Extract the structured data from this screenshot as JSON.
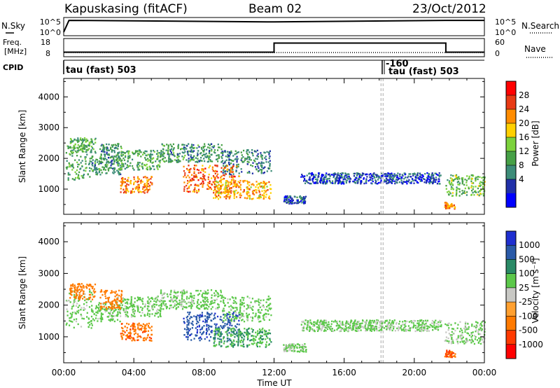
{
  "header": {
    "station": "Kapuskasing (fitACF)",
    "beam": "Beam 02",
    "date": "23/Oct/2012"
  },
  "panels": {
    "nsky_label": "N.Sky",
    "nsearch_label": "N.Search",
    "freq_label_1": "Freq.",
    "freq_label_2": "[MHz]",
    "nave_label": "Nave",
    "cpid_label": "CPID",
    "power_label": "Power [dB]",
    "velocity_label": "Velocity [m s⁻¹]",
    "ylabel": "Slant Range [km]",
    "xlabel": "Time UT"
  },
  "noise_ticks": {
    "left": [
      "10^5",
      "10^0"
    ],
    "right": [
      "10^5",
      "10^0"
    ]
  },
  "freq_ticks": {
    "left": [
      "18",
      "8"
    ],
    "right": [
      "60",
      "0"
    ]
  },
  "cpid": [
    {
      "label": "tau (fast) 503",
      "start_hour": 0
    },
    {
      "label": "-160",
      "start_hour": 18.1
    },
    {
      "label": "tau (fast) 503",
      "start_hour": 18.1
    }
  ],
  "power_scale": {
    "ticks": [
      "28",
      "24",
      "20",
      "16",
      "12",
      "8",
      "4"
    ],
    "colors": [
      "#ff0000",
      "#e83a14",
      "#ff8c00",
      "#ffd000",
      "#7cd23c",
      "#46a046",
      "#3c8c78",
      "#2030a8",
      "#0000ff"
    ]
  },
  "velocity_scale": {
    "ticks": [
      "1000",
      "500",
      "100",
      "25",
      "-25",
      "-100",
      "-500",
      "-1000"
    ],
    "colors": [
      "#1f2fd0",
      "#2a5aa8",
      "#2a8a66",
      "#5cc84a",
      "#c8c8c4",
      "#ffa030",
      "#ff7a00",
      "#ff3a00",
      "#ff0000"
    ]
  },
  "chart_data": {
    "type": "heatmap",
    "x_range_hours": [
      0,
      24
    ],
    "x_tick_labels": [
      "00:00",
      "04:00",
      "08:00",
      "12:00",
      "16:00",
      "20:00",
      "00:00"
    ],
    "y_range_km": [
      180,
      4600
    ],
    "y_tick_labels": [
      "1000",
      "2000",
      "3000",
      "4000"
    ],
    "nsky_log": {
      "hours": [
        0,
        0.3,
        12,
        21.8,
        24
      ],
      "values": [
        0.5,
        4.3,
        3.8,
        4.3,
        4.3
      ]
    },
    "freq_mhz": {
      "hours": [
        0,
        12,
        21.8,
        24
      ],
      "values": [
        8,
        15,
        8,
        8
      ]
    },
    "features": [
      {
        "t0": 0.1,
        "t1": 1.6,
        "r0": 1300,
        "r1": 2500,
        "power": 12,
        "vel": 20
      },
      {
        "t0": 1.6,
        "t1": 3.2,
        "r0": 1500,
        "r1": 2100,
        "power": 10,
        "vel": 20
      },
      {
        "t0": 3.0,
        "t1": 5.5,
        "r0": 1650,
        "r1": 2300,
        "power": 12,
        "vel": 20
      },
      {
        "t0": 5.5,
        "t1": 9.0,
        "r0": 1900,
        "r1": 2500,
        "power": 10,
        "vel": 20
      },
      {
        "t0": 9.0,
        "t1": 11.8,
        "r0": 1500,
        "r1": 2300,
        "power": 8,
        "vel": 20
      },
      {
        "t0": 0.3,
        "t1": 1.8,
        "r0": 2200,
        "r1": 2700,
        "power": 12,
        "vel": -400
      },
      {
        "t0": 2.0,
        "t1": 3.3,
        "r0": 1900,
        "r1": 2500,
        "power": 10,
        "vel": -400
      },
      {
        "t0": 3.2,
        "t1": 5.0,
        "r0": 900,
        "r1": 1450,
        "power": 24,
        "vel": -450
      },
      {
        "t0": 6.8,
        "t1": 10.0,
        "r0": 900,
        "r1": 1800,
        "power": 26,
        "vel": 600
      },
      {
        "t0": 8.5,
        "t1": 11.8,
        "r0": 700,
        "r1": 1300,
        "power": 22,
        "vel": 60
      },
      {
        "t0": 12.5,
        "t1": 13.8,
        "r0": 550,
        "r1": 800,
        "power": 6,
        "vel": 10
      },
      {
        "t0": 13.5,
        "t1": 21.5,
        "r0": 1200,
        "r1": 1550,
        "power": 5,
        "vel": 10
      },
      {
        "t0": 21.7,
        "t1": 24.0,
        "r0": 800,
        "r1": 1500,
        "power": 14,
        "vel": 10
      },
      {
        "t0": 21.7,
        "t1": 22.3,
        "r0": 380,
        "r1": 600,
        "power": 24,
        "vel": -600
      }
    ]
  }
}
